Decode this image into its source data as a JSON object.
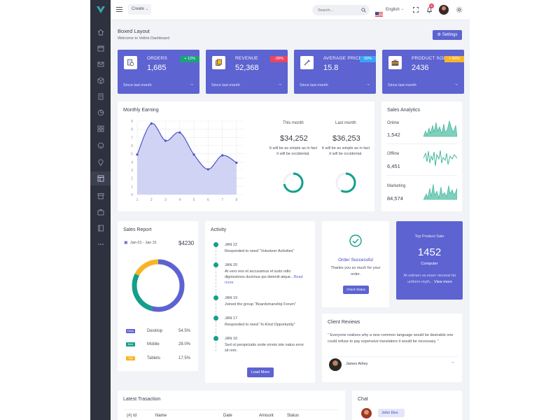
{
  "topbar": {
    "create_label": "Create",
    "search_placeholder": "Search...",
    "language": "English",
    "notification_count": "9"
  },
  "header": {
    "title": "Boxed Layout",
    "subtitle": "Welcome to Veltrix Dashboard",
    "settings_label": "Settings"
  },
  "stats": [
    {
      "label": "ORDERS",
      "value": "1,685",
      "badge": "+ 12%",
      "badge_color": "#1aa37a",
      "footer": "Since last month",
      "icon": "orders-icon"
    },
    {
      "label": "REVENUE",
      "value": "52,368",
      "badge": "-28%",
      "badge_color": "#ec4561",
      "footer": "Since last month",
      "icon": "revenue-icon"
    },
    {
      "label": "AVERAGE PRICE",
      "value": "15.8",
      "badge": "00%",
      "badge_color": "#38a4f8",
      "footer": "Since last month",
      "icon": "price-tag-icon"
    },
    {
      "label": "PRODUCT SOLD",
      "value": "2436",
      "badge": "+ 84%",
      "badge_color": "#f8b425",
      "footer": "Since last month",
      "icon": "briefcase-icon"
    }
  ],
  "monthly_earning": {
    "title": "Monthly Earning",
    "this_month_label": "This month",
    "this_month_value": "$34,252",
    "this_month_text": "It will be as simple as in fact it will be occidental.",
    "last_month_label": "Last month",
    "last_month_value": "$36,253",
    "last_month_text": "It will be as simple as in fact it will be occidental.",
    "donut_this_month": 0.72,
    "donut_last_month": 0.58
  },
  "chart_data": {
    "type": "area",
    "x": [
      1,
      2,
      3,
      4,
      5,
      6,
      7,
      8
    ],
    "xlabels": [
      "1",
      "2",
      "3",
      "4",
      "5",
      "6",
      "7",
      "8"
    ],
    "values": [
      4.9,
      8.7,
      6.6,
      7.6,
      4.9,
      3.1,
      4.8,
      3.9
    ],
    "yticks": [
      "0",
      "1",
      "2",
      "3",
      "4",
      "5",
      "6",
      "7",
      "8",
      "9"
    ],
    "ylim": [
      0,
      9
    ],
    "xlim": [
      1,
      8.5
    ],
    "grid": true,
    "fill_color": "#c9cbf2",
    "line_color": "#4d53c6"
  },
  "sales_analytics": {
    "title": "Sales Analytics",
    "rows": [
      {
        "label": "Online",
        "value": "1,542"
      },
      {
        "label": "Offline",
        "value": "6,451"
      },
      {
        "label": "Marketing",
        "value": "84,574"
      }
    ],
    "spark_color": "#32b193"
  },
  "sales_report": {
    "title": "Sales Report",
    "date_range": "Jan 01 - Jan 31",
    "total": "$4230",
    "segments": [
      {
        "tag": "Desk",
        "label": "Desktop",
        "percent": "54.5%",
        "value": 54.5,
        "color": "#5d63d0"
      },
      {
        "tag": "Mob",
        "label": "Mobile",
        "percent": "28.0%",
        "value": 28.0,
        "color": "#139f8c"
      },
      {
        "tag": "Tab",
        "label": "Tablets",
        "percent": "17.5%",
        "value": 17.5,
        "color": "#f8b425"
      }
    ]
  },
  "activity": {
    "title": "Activity",
    "items": [
      {
        "date": "JAN 22",
        "text": "Responded to need “Volunteer Activities”",
        "link": ""
      },
      {
        "date": "JAN 20",
        "text": "At vero eos et accusamus et iusto odio dignissimos ducimus qui deleniti atque...",
        "link": "Read more"
      },
      {
        "date": "JAN 19",
        "text": "Joined the group “Boardsmanship Forum”",
        "link": ""
      },
      {
        "date": "JAN 17",
        "text": "Responded to need “In-Kind Opportunity”",
        "link": ""
      },
      {
        "date": "JAN 16",
        "text": "Sed ut perspiciatis unde omnis iste natus error sit rem.",
        "link": ""
      }
    ],
    "load_more": "Load More"
  },
  "order": {
    "title": "Order Successful",
    "text": "Thanks you so much for your order.",
    "button": "Check Status"
  },
  "top_product": {
    "title": "Top Product Sale",
    "value": "1452",
    "category": "Computer",
    "text": "At solmen va esser necessi far uniform myth...",
    "link": "View more"
  },
  "client_reviews": {
    "title": "Client Reviews",
    "quote": "” Everyone realizes why a new common language would be desirable one could refuse to pay expensive translators it would be necessary. ”",
    "reviewer": "James Athey"
  },
  "transactions": {
    "title": "Latest Trasaction",
    "columns": [
      "(#) Id",
      "Name",
      "Date",
      "Amount",
      "Status"
    ]
  },
  "chat": {
    "title": "Chat",
    "name": "John Deo"
  }
}
